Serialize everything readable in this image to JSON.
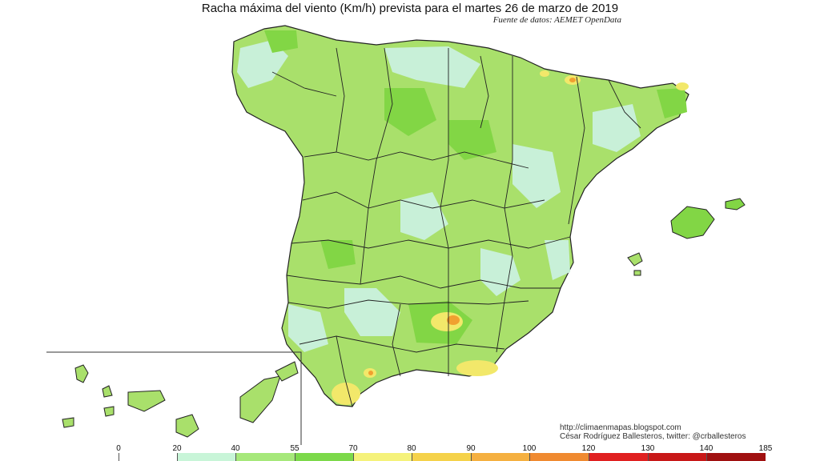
{
  "title": "Racha máxima del viento (Km/h) prevista para el martes 26 de marzo de 2019",
  "source": "Fuente de datos: AEMET OpenData",
  "credits": {
    "url": "http://climaenmapas.blogspot.com",
    "author": "César Rodríguez Ballesteros, twitter: @crballesteros"
  },
  "legend": {
    "ticks": [
      "0",
      "20",
      "40",
      "55",
      "70",
      "80",
      "90",
      "100",
      "120",
      "130",
      "140",
      "185"
    ],
    "colors": [
      "#ffffff",
      "#c8f5d8",
      "#a6e87a",
      "#7cd94a",
      "#f5f27a",
      "#f5d24a",
      "#f5b040",
      "#f08a30",
      "#e02020",
      "#c81818",
      "#a01010"
    ]
  },
  "colors": {
    "land_base": "#a9e06b",
    "land_light": "#c8f0d8",
    "land_green": "#82d645",
    "yellow": "#f2e86a",
    "orange": "#f0a030",
    "border": "#222222"
  }
}
